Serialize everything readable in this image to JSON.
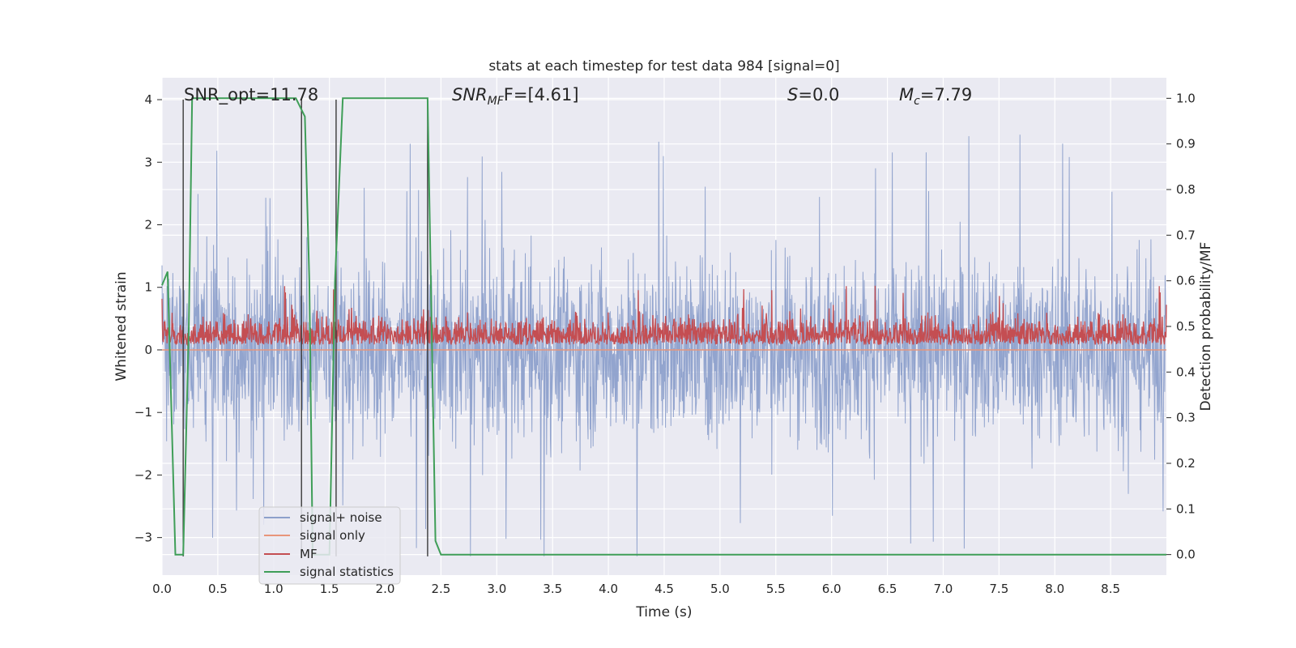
{
  "chart_data": {
    "type": "line",
    "title": "stats at each timestep for test data 984 [signal=0]",
    "xlabel": "Time (s)",
    "ylabel": "Whitened strain",
    "ylabel_right": "Detection probability/MF",
    "xlim": [
      0.0,
      9.0
    ],
    "ylim": [
      -3.6,
      4.35
    ],
    "ylim_right": [
      -0.045,
      1.045
    ],
    "xticks": [
      "0.0",
      "0.5",
      "1.0",
      "1.5",
      "2.0",
      "2.5",
      "3.0",
      "3.5",
      "4.0",
      "4.5",
      "5.0",
      "5.5",
      "6.0",
      "6.5",
      "7.0",
      "7.5",
      "8.0",
      "8.5"
    ],
    "yticks": [
      "4",
      "3",
      "2",
      "1",
      "0",
      "−1",
      "−2",
      "−3"
    ],
    "yticks_right": [
      "1.0",
      "0.9",
      "0.8",
      "0.7",
      "0.6",
      "0.5",
      "0.4",
      "0.3",
      "0.2",
      "0.1",
      "0.0"
    ],
    "annotations": {
      "snr_opt": "SNR_opt=11.78",
      "snr_mf_sym": "SNR",
      "snr_mf_sub": "MF",
      "snr_mf_val": "F=[4.61]",
      "s_sym": "S",
      "s_val": "=0.0",
      "mc_sym": "M",
      "mc_sub": "c",
      "mc_val": "=7.79"
    },
    "series": [
      {
        "name": "signal+ noise",
        "color": "#8da0cb",
        "axis": "left",
        "style": "dense-noise",
        "center": 0.0,
        "typical_range": [
          -1.8,
          1.8
        ],
        "extremes": [
          -3.3,
          4.0
        ]
      },
      {
        "name": "signal only",
        "color": "#e8957a",
        "axis": "left",
        "style": "flat",
        "value": 0.0
      },
      {
        "name": "MF",
        "color": "#c44e52",
        "axis": "right",
        "style": "dense-noise",
        "base": 0.46,
        "typical_range": [
          0.46,
          0.53
        ],
        "peak": 0.62
      },
      {
        "name": "signal statistics",
        "color": "#3f9e58",
        "axis": "right",
        "x": [
          0.0,
          0.05,
          0.12,
          0.19,
          0.24,
          0.27,
          0.5,
          1.0,
          1.2,
          1.28,
          1.32,
          1.35,
          1.5,
          1.55,
          1.62,
          1.7,
          2.0,
          2.2,
          2.38,
          2.45,
          2.5,
          2.55,
          2.6,
          9.0
        ],
        "y": [
          0.59,
          0.62,
          0.0,
          0.0,
          0.5,
          1.0,
          1.0,
          1.0,
          1.0,
          0.96,
          0.6,
          0.0,
          0.0,
          0.6,
          1.0,
          1.0,
          1.0,
          1.0,
          1.0,
          0.03,
          0.0,
          0.0,
          0.0,
          0.0
        ]
      }
    ],
    "vlines_x": [
      0.19,
      1.25,
      1.56,
      2.38
    ],
    "legend": {
      "position": "lower-left",
      "entries": [
        {
          "label": "signal+ noise",
          "color": "#8da0cb"
        },
        {
          "label": "signal only",
          "color": "#e8957a"
        },
        {
          "label": "MF",
          "color": "#c44e52"
        },
        {
          "label": "signal statistics",
          "color": "#3f9e58"
        }
      ]
    },
    "grid": true
  }
}
